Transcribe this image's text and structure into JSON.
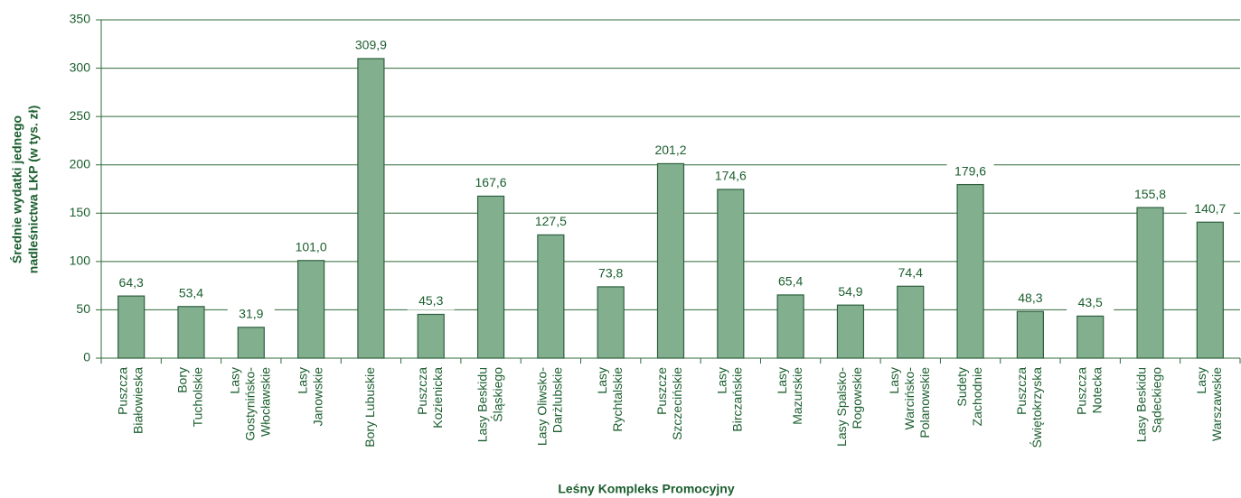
{
  "chart_data": {
    "type": "bar",
    "x_label": "Leśny Kompleks Promocyjny",
    "y_label": [
      "Średnie wydatki jednego",
      "nadleśnictwa LKP (w tys. zł)"
    ],
    "categories": [
      [
        "Puszcza",
        "Białowieska"
      ],
      [
        "Bory",
        "Tucholskie"
      ],
      [
        "Lasy",
        "Gostynińsko-",
        "Włocławskie"
      ],
      [
        "Lasy",
        "Janowskie"
      ],
      [
        "Bory Lubuskie"
      ],
      [
        "Puszcza",
        "Kozienicka"
      ],
      [
        "Lasy Beskidu",
        "Śląskiego"
      ],
      [
        "Lasy Oliwsko-",
        "Darżlubskie"
      ],
      [
        "Lasy",
        "Rychtalskie"
      ],
      [
        "Puszcze",
        "Szczecińskie"
      ],
      [
        "Lasy",
        "Birczańskie"
      ],
      [
        "Lasy",
        "Mazurskie"
      ],
      [
        "Lasy Spalsko-",
        "Rogowskie"
      ],
      [
        "Lasy",
        "Warcińsko-",
        "Polanowskie"
      ],
      [
        "Sudety",
        "Zachodnie"
      ],
      [
        "Puszcza",
        "Świętokrzyska"
      ],
      [
        "Puszcza",
        "Notecka"
      ],
      [
        "Lasy Beskidu",
        "Sądeckiego"
      ],
      [
        "Lasy",
        "Warszawskie"
      ]
    ],
    "values": [
      64.3,
      53.4,
      31.9,
      101.0,
      309.9,
      45.3,
      167.6,
      127.5,
      73.8,
      201.2,
      174.6,
      65.4,
      54.9,
      74.4,
      179.6,
      48.3,
      43.5,
      155.8,
      140.7
    ],
    "value_labels": [
      "64,3",
      "53,4",
      "31,9",
      "101,0",
      "309,9",
      "45,3",
      "167,6",
      "127,5",
      "73,8",
      "201,2",
      "174,6",
      "65,4",
      "54,9",
      "74,4",
      "179,6",
      "48,3",
      "43,5",
      "155,8",
      "140,7"
    ],
    "color": "#82b08f",
    "ylim": [
      0,
      350
    ],
    "yticks": [
      0,
      50,
      100,
      150,
      200,
      250,
      300,
      350
    ],
    "grid": true
  }
}
